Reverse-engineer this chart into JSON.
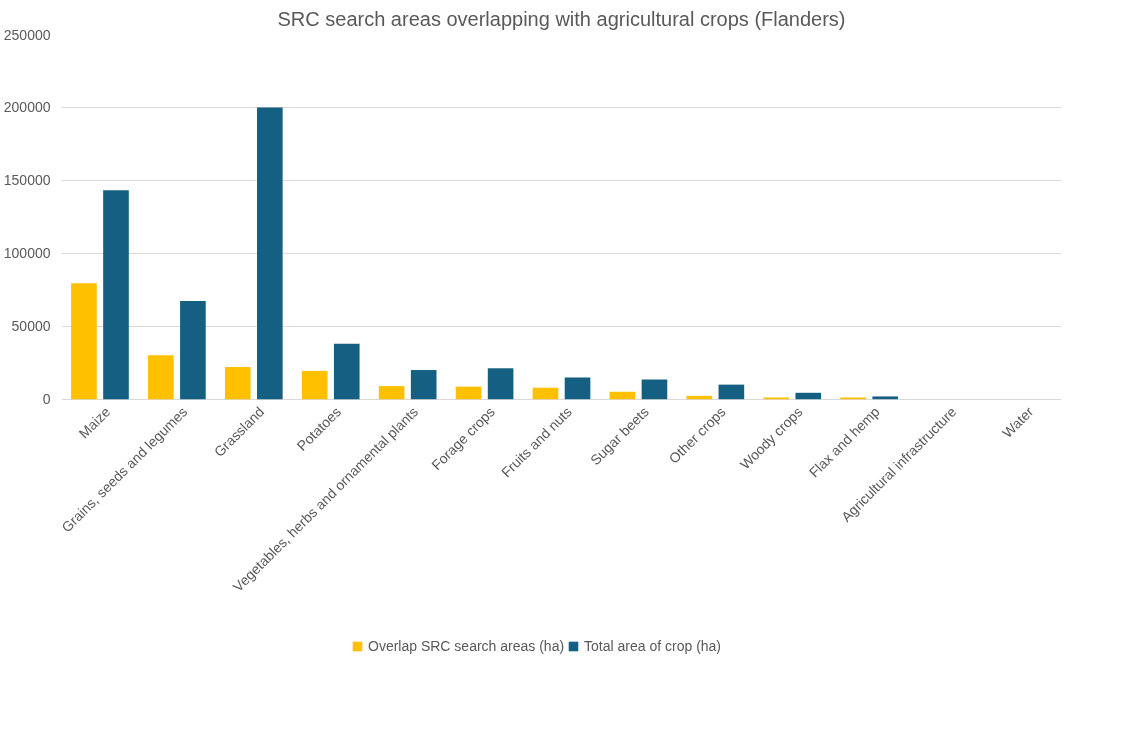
{
  "chart_data": {
    "type": "bar",
    "title": "SRC search areas overlapping with agricultural crops (Flanders)",
    "categories": [
      "Maize",
      "Grains, seeds and legumes",
      "Grassland",
      "Potatoes",
      "Vegetables, herbs and ornamental plants",
      "Forage crops",
      "Fruits and nuts",
      "Sugar beets",
      "Other crops",
      "Woody crops",
      "Flax and hemp",
      "Agricultural infrastructure",
      "Water"
    ],
    "series": [
      {
        "name": "Overlap SRC search areas (ha)",
        "color": "#ffc000",
        "values": [
          79500,
          30200,
          22100,
          19400,
          9000,
          8600,
          7900,
          5100,
          2300,
          1200,
          1200,
          0,
          0
        ]
      },
      {
        "name": "Total area of crop (ha)",
        "color": "#156082",
        "values": [
          143300,
          67300,
          200000,
          38000,
          20000,
          21200,
          14900,
          13500,
          10000,
          4400,
          1900,
          0,
          0
        ]
      }
    ],
    "ylim": [
      0,
      250000
    ],
    "yticks": [
      0,
      50000,
      100000,
      150000,
      200000,
      250000
    ],
    "grid": "y",
    "legend": "bottom"
  }
}
